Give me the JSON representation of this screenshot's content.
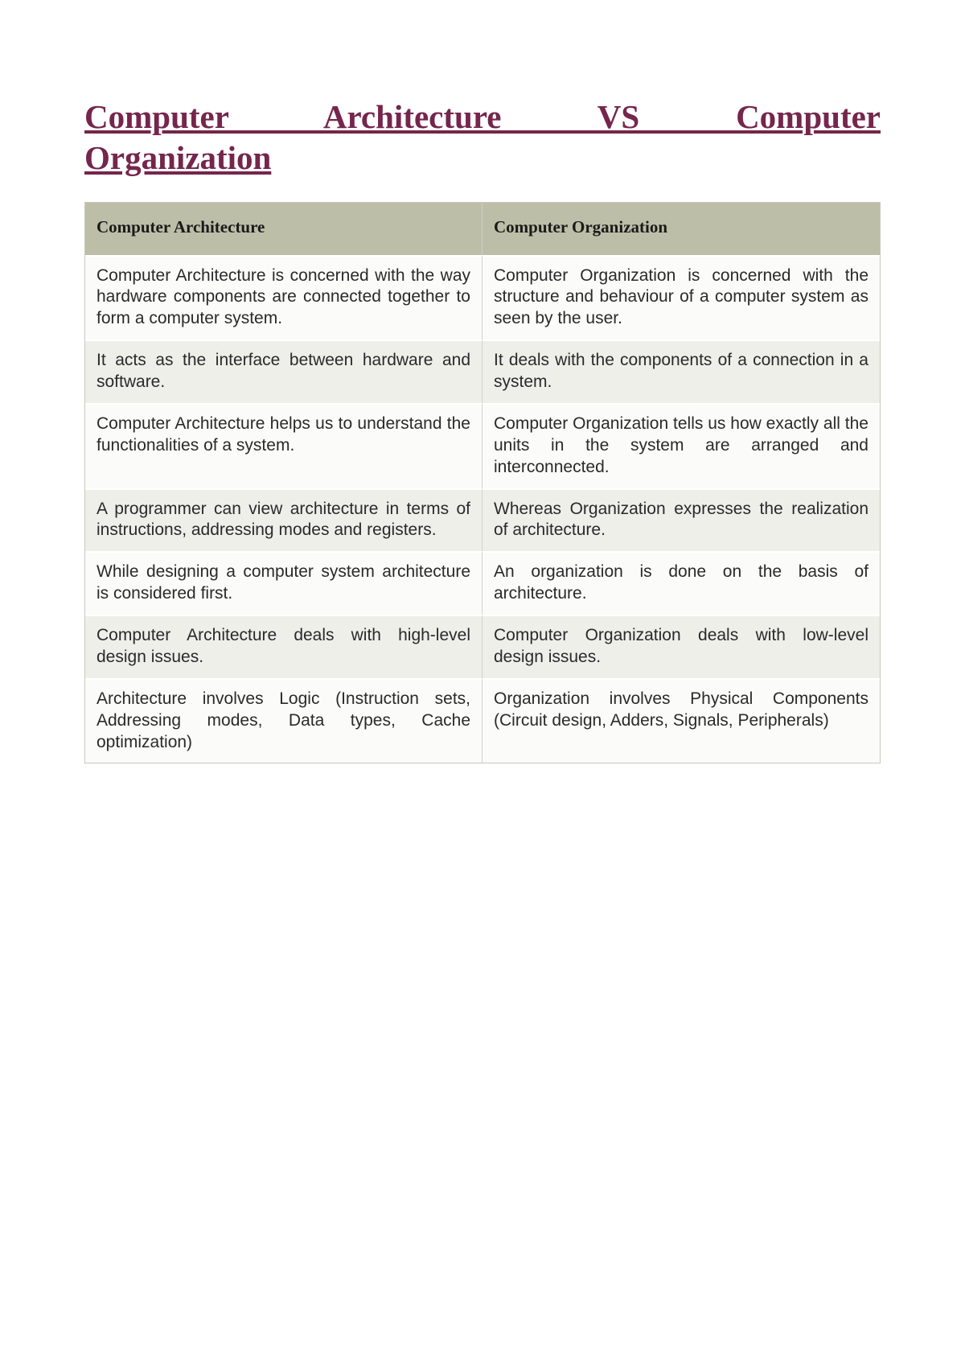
{
  "title_line1": "Computer Architecture VS Computer",
  "title_line2": "Organization",
  "table": {
    "columns": [
      "Computer Architecture",
      "Computer Organization"
    ],
    "header_bg": "#bdbea7",
    "row_odd_bg": "#fbfcf9",
    "row_even_bg": "#eeefe9",
    "title_color": "#75264d",
    "header_fontsize": 21,
    "cell_fontsize": 21,
    "rows": [
      [
        "Computer Architecture is concerned with the way hardware components are connected together to form a computer system.",
        "Computer Organization is concerned with the structure and behaviour of a computer system as seen by the user."
      ],
      [
        "It acts as the interface between hardware and software.",
        "It deals with the components of a connection in a system."
      ],
      [
        "Computer Architecture helps us to understand the functionalities of a system.",
        "Computer Organization tells us how exactly all the units in the system are arranged and interconnected."
      ],
      [
        "A programmer can view architecture in terms of instructions, addressing modes and registers.",
        "Whereas Organization expresses the realization of architecture."
      ],
      [
        "While designing a computer system architecture is considered first.",
        "An organization is done on the basis of architecture."
      ],
      [
        "Computer Architecture deals with high-level design issues.",
        "Computer Organization deals with low-level design issues."
      ],
      [
        "Architecture involves Logic (Instruction sets, Addressing modes, Data types, Cache optimization)",
        "Organization involves Physical Components (Circuit design, Adders, Signals, Peripherals)"
      ]
    ]
  }
}
